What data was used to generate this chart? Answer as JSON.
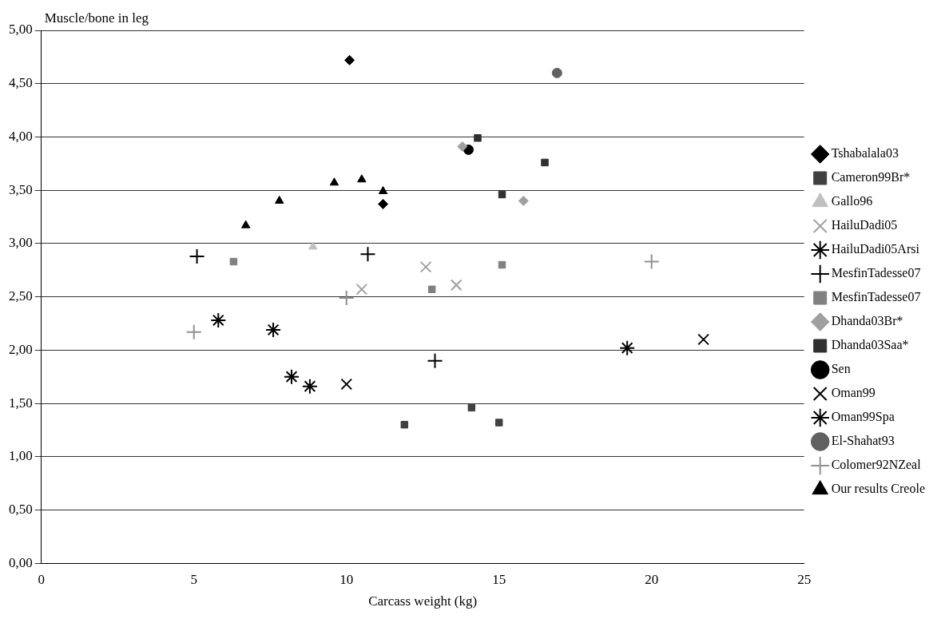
{
  "chart_data": {
    "type": "scatter",
    "xlabel": "Carcass weight (kg)",
    "ylabel": "Muscle/bone in leg",
    "xlim": [
      0,
      25
    ],
    "xticks": [
      0,
      5,
      10,
      15,
      20,
      25
    ],
    "ylim": [
      0,
      5
    ],
    "yticks": [
      {
        "value": 0,
        "label": "0,00"
      },
      {
        "value": 0.5,
        "label": "0,50"
      },
      {
        "value": 1,
        "label": "1,00"
      },
      {
        "value": 1.5,
        "label": "1,50"
      },
      {
        "value": 2,
        "label": "2,00"
      },
      {
        "value": 2.5,
        "label": "2,50"
      },
      {
        "value": 3,
        "label": "3,00"
      },
      {
        "value": 3.5,
        "label": "3,50"
      },
      {
        "value": 4,
        "label": "4,00"
      },
      {
        "value": 4.5,
        "label": "4,50"
      },
      {
        "value": 5,
        "label": "5,00"
      }
    ],
    "grid": "y",
    "legend": "right",
    "series": [
      {
        "name": "Tshabalala03",
        "color": "#000000",
        "marker": "diamond",
        "x": [
          10.1,
          11.2
        ],
        "values": [
          4.72,
          3.37
        ]
      },
      {
        "name": "Cameron99Br*",
        "color": "#404040",
        "marker": "square",
        "x": [
          11.9,
          14.1,
          15
        ],
        "values": [
          1.3,
          1.46,
          1.32
        ]
      },
      {
        "name": "Gallo96",
        "color": "#c0c0c0",
        "marker": "triangle",
        "x": [
          8.9
        ],
        "values": [
          2.97
        ]
      },
      {
        "name": "HailuDadi05",
        "color": "#a0a0a0",
        "marker": "cross",
        "x": [
          12.6,
          13.6,
          10.5
        ],
        "values": [
          2.78,
          2.61,
          2.57
        ]
      },
      {
        "name": "HailuDadi05Arsi",
        "color": "#000000",
        "x": [
          5.8,
          7.6
        ],
        "values": [
          2.28,
          2.19
        ]
      },
      {
        "name": "MesfinTadesse07",
        "color": "#000000",
        "marker": "plus",
        "x": [
          5.1,
          10.7,
          12.9
        ],
        "values": [
          2.88,
          2.9,
          1.9
        ]
      },
      {
        "name": "MesfinTadesse07",
        "color": "#808080",
        "marker": "square",
        "x": [
          6.3,
          15.1,
          12.8
        ],
        "values": [
          2.83,
          2.8,
          2.57
        ]
      },
      {
        "name": "Dhanda03Br*",
        "color": "#a0a0a0",
        "marker": "diamond",
        "x": [
          13.8,
          15.8
        ],
        "values": [
          3.91,
          3.4
        ]
      },
      {
        "name": "Dhanda03Saa*",
        "color": "#303030",
        "marker": "square",
        "x": [
          14.3,
          16.5,
          15.1
        ],
        "values": [
          3.99,
          3.76,
          3.46
        ]
      },
      {
        "name": "Sen",
        "color": "#000000",
        "marker": "circle",
        "x": [
          14
        ],
        "values": [
          3.88
        ]
      },
      {
        "name": "Oman99",
        "color": "#000000",
        "marker": "cross",
        "x": [
          10,
          21.7
        ],
        "values": [
          1.68,
          2.1
        ]
      },
      {
        "name": "Oman99Spa",
        "color": "#000000",
        "x": [
          8.2,
          8.8,
          19.2
        ],
        "values": [
          1.75,
          1.66,
          2.02
        ]
      },
      {
        "name": "El-Shahat93",
        "color": "#606060",
        "marker": "circle",
        "x": [
          16.9
        ],
        "values": [
          4.6
        ]
      },
      {
        "name": "Colomer92NZeal",
        "color": "#909090",
        "marker": "plus",
        "x": [
          10,
          5,
          20
        ],
        "values": [
          2.49,
          2.17,
          2.83
        ]
      },
      {
        "name": "Our results Creole",
        "color": "#000000",
        "marker": "triangle",
        "x": [
          6.7,
          7.8,
          9.6,
          10.5,
          11.2
        ],
        "values": [
          3.17,
          3.4,
          3.57,
          3.6,
          3.49
        ]
      }
    ]
  }
}
